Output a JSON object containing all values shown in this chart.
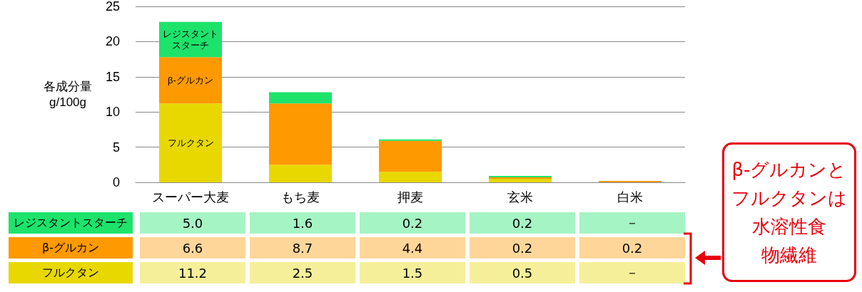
{
  "chart_data": {
    "type": "bar",
    "stacked": true,
    "ylabel": "各成分量\ng/100g",
    "categories": [
      "スーパー大麦",
      "もち麦",
      "押麦",
      "玄米",
      "白米"
    ],
    "series": [
      {
        "name": "フルクタン",
        "color": "#e8d800",
        "values": [
          11.2,
          2.5,
          1.5,
          0.5,
          null
        ],
        "value_labels": [
          "11.2",
          "2.5",
          "1.5",
          "0.5",
          "－"
        ]
      },
      {
        "name": "β-グルカン",
        "color": "#ff9900",
        "values": [
          6.6,
          8.7,
          4.4,
          0.2,
          0.2
        ],
        "value_labels": [
          "6.6",
          "8.7",
          "4.4",
          "0.2",
          "0.2"
        ]
      },
      {
        "name": "レジスタントスターチ",
        "color": "#1de36b",
        "values": [
          5.0,
          1.6,
          0.2,
          0.2,
          null
        ],
        "value_labels": [
          "5.0",
          "1.6",
          "0.2",
          "0.2",
          "－"
        ]
      }
    ],
    "ylim": [
      0,
      25
    ],
    "yticks": [
      0,
      5,
      10,
      15,
      20,
      25
    ],
    "grid": "y",
    "annotations": [
      "β-グルカンとフルクタンは",
      "水溶性食物繊維",
      "フルクタン",
      "β-グルカン",
      "レジスタントスターチ"
    ]
  }
}
